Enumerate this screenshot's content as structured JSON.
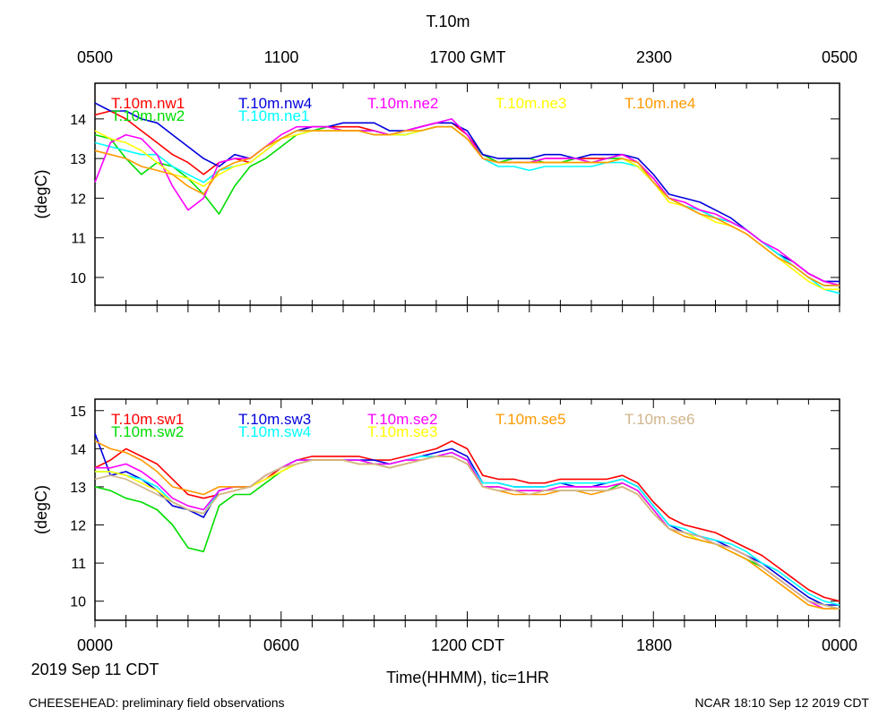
{
  "title": "T.10m",
  "top_axis_ticks": [
    "0500",
    "1100",
    "1700 GMT",
    "2300",
    "0500"
  ],
  "bottom_axis_ticks": [
    "0000",
    "0600",
    "1200 CDT",
    "1800",
    "0000"
  ],
  "date_label": "2019 Sep 11 CDT",
  "xlabel": "Time(HHMM), tic=1HR",
  "footer_left": "CHEESEHEAD: preliminary field observations",
  "footer_right": "NCAR 18:10 Sep 12 2019 CDT",
  "chart_data": [
    {
      "type": "line",
      "panel": "top",
      "ylabel": "(degC)",
      "ylim": [
        9.3,
        14.9
      ],
      "yticks": [
        10,
        11,
        12,
        13,
        14
      ],
      "xlim": [
        0,
        24
      ],
      "x": [
        0,
        0.5,
        1,
        1.5,
        2,
        2.5,
        3,
        3.5,
        4,
        4.5,
        5,
        5.5,
        6,
        6.5,
        7,
        7.5,
        8,
        8.5,
        9,
        9.5,
        10,
        10.5,
        11,
        11.5,
        12,
        12.5,
        13,
        13.5,
        14,
        14.5,
        15,
        15.5,
        16,
        16.5,
        17,
        17.5,
        18,
        18.5,
        19,
        19.5,
        20,
        20.5,
        21,
        21.5,
        22,
        22.5,
        23,
        23.5,
        24
      ],
      "series": [
        {
          "name": "T.10m.nw1",
          "color": "#ff0000",
          "values": [
            14.1,
            14.2,
            14.0,
            13.7,
            13.4,
            13.1,
            12.9,
            12.6,
            12.9,
            13.0,
            12.9,
            13.2,
            13.5,
            13.7,
            13.8,
            13.8,
            13.8,
            13.8,
            13.7,
            13.6,
            13.7,
            13.8,
            13.9,
            13.9,
            13.6,
            13.1,
            12.9,
            12.9,
            12.9,
            13.0,
            13.0,
            13.0,
            13.0,
            13.0,
            13.1,
            12.9,
            12.5,
            12.0,
            11.8,
            11.7,
            11.5,
            11.4,
            11.2,
            10.9,
            10.6,
            10.4,
            10.1,
            9.9,
            9.8
          ]
        },
        {
          "name": "T.10m.nw2",
          "color": "#00dd00",
          "values": [
            13.6,
            13.5,
            13.0,
            12.6,
            12.9,
            12.8,
            12.5,
            12.1,
            11.6,
            12.3,
            12.8,
            13.0,
            13.3,
            13.6,
            13.7,
            13.8,
            13.7,
            13.7,
            13.7,
            13.6,
            13.6,
            13.7,
            13.8,
            13.8,
            13.5,
            13.1,
            12.9,
            13.0,
            13.0,
            12.9,
            12.9,
            13.0,
            12.9,
            13.0,
            13.0,
            12.8,
            12.4,
            12.0,
            11.8,
            11.7,
            11.5,
            11.4,
            11.2,
            10.9,
            10.6,
            10.3,
            10.0,
            9.8,
            9.8
          ]
        },
        {
          "name": "T.10m.nw4",
          "color": "#0000dd",
          "values": [
            14.4,
            14.2,
            14.2,
            14.0,
            13.9,
            13.6,
            13.3,
            13.0,
            12.8,
            13.1,
            13.0,
            13.3,
            13.5,
            13.7,
            13.8,
            13.8,
            13.9,
            13.9,
            13.9,
            13.7,
            13.7,
            13.8,
            13.9,
            13.9,
            13.7,
            13.1,
            13.0,
            13.0,
            13.0,
            13.1,
            13.1,
            13.0,
            13.1,
            13.1,
            13.1,
            13.0,
            12.6,
            12.1,
            12.0,
            11.9,
            11.7,
            11.5,
            11.2,
            10.9,
            10.6,
            10.4,
            10.1,
            9.9,
            9.9
          ]
        },
        {
          "name": "T.10m.ne1",
          "color": "#00ffff",
          "values": [
            13.4,
            13.3,
            13.2,
            13.1,
            13.1,
            12.8,
            12.6,
            12.4,
            12.7,
            12.8,
            12.9,
            13.2,
            13.5,
            13.7,
            13.7,
            13.7,
            13.7,
            13.7,
            13.6,
            13.6,
            13.6,
            13.7,
            13.8,
            13.8,
            13.5,
            13.0,
            12.8,
            12.8,
            12.7,
            12.8,
            12.8,
            12.8,
            12.8,
            12.9,
            12.9,
            12.8,
            12.4,
            12.0,
            11.8,
            11.7,
            11.5,
            11.4,
            11.2,
            10.9,
            10.6,
            10.3,
            10.0,
            9.7,
            9.6
          ]
        },
        {
          "name": "T.10m.ne2",
          "color": "#ff00ff",
          "values": [
            12.4,
            13.4,
            13.6,
            13.5,
            13.1,
            12.3,
            11.7,
            12.0,
            12.9,
            13.0,
            13.0,
            13.3,
            13.6,
            13.8,
            13.8,
            13.8,
            13.7,
            13.7,
            13.7,
            13.6,
            13.7,
            13.8,
            13.9,
            14.0,
            13.6,
            13.0,
            12.9,
            12.9,
            12.9,
            13.0,
            13.0,
            13.0,
            12.9,
            13.0,
            13.1,
            12.9,
            12.5,
            12.0,
            11.9,
            11.7,
            11.6,
            11.4,
            11.2,
            10.9,
            10.7,
            10.4,
            10.1,
            9.9,
            9.8
          ]
        },
        {
          "name": "T.10m.ne3",
          "color": "#ffff00",
          "values": [
            13.7,
            13.5,
            13.4,
            13.2,
            12.9,
            12.6,
            12.5,
            12.3,
            12.6,
            12.8,
            12.9,
            13.2,
            13.5,
            13.6,
            13.7,
            13.7,
            13.7,
            13.7,
            13.6,
            13.6,
            13.6,
            13.7,
            13.8,
            13.8,
            13.5,
            13.0,
            12.9,
            12.9,
            12.9,
            12.9,
            12.9,
            12.9,
            12.9,
            12.9,
            13.0,
            12.8,
            12.4,
            11.9,
            11.8,
            11.6,
            11.4,
            11.3,
            11.1,
            10.8,
            10.5,
            10.2,
            9.9,
            9.7,
            9.7
          ]
        },
        {
          "name": "T.10m.ne4",
          "color": "#ff9900",
          "values": [
            13.2,
            13.1,
            13.0,
            12.8,
            12.7,
            12.6,
            12.3,
            12.1,
            12.7,
            12.9,
            13.0,
            13.3,
            13.5,
            13.7,
            13.7,
            13.7,
            13.7,
            13.7,
            13.6,
            13.6,
            13.7,
            13.7,
            13.8,
            13.8,
            13.5,
            13.0,
            12.9,
            12.9,
            12.9,
            12.9,
            12.9,
            12.9,
            12.9,
            12.9,
            13.0,
            12.9,
            12.4,
            12.0,
            11.8,
            11.6,
            11.5,
            11.3,
            11.1,
            10.8,
            10.5,
            10.3,
            10.0,
            9.8,
            9.8
          ]
        }
      ]
    },
    {
      "type": "line",
      "panel": "bottom",
      "ylabel": "(degC)",
      "ylim": [
        9.5,
        15.3
      ],
      "yticks": [
        10,
        11,
        12,
        13,
        14,
        15
      ],
      "xlim": [
        0,
        24
      ],
      "x": [
        0,
        0.5,
        1,
        1.5,
        2,
        2.5,
        3,
        3.5,
        4,
        4.5,
        5,
        5.5,
        6,
        6.5,
        7,
        7.5,
        8,
        8.5,
        9,
        9.5,
        10,
        10.5,
        11,
        11.5,
        12,
        12.5,
        13,
        13.5,
        14,
        14.5,
        15,
        15.5,
        16,
        16.5,
        17,
        17.5,
        18,
        18.5,
        19,
        19.5,
        20,
        20.5,
        21,
        21.5,
        22,
        22.5,
        23,
        23.5,
        24
      ],
      "series": [
        {
          "name": "T.10m.sw1",
          "color": "#ff0000",
          "values": [
            13.5,
            13.7,
            14.0,
            13.8,
            13.6,
            13.2,
            12.8,
            12.7,
            12.8,
            12.9,
            13.0,
            13.2,
            13.5,
            13.7,
            13.8,
            13.8,
            13.8,
            13.8,
            13.7,
            13.7,
            13.8,
            13.9,
            14.0,
            14.2,
            14.0,
            13.3,
            13.2,
            13.2,
            13.1,
            13.1,
            13.2,
            13.2,
            13.2,
            13.2,
            13.3,
            13.1,
            12.6,
            12.2,
            12.0,
            11.9,
            11.8,
            11.6,
            11.4,
            11.2,
            10.9,
            10.6,
            10.3,
            10.1,
            10.0
          ]
        },
        {
          "name": "T.10m.sw2",
          "color": "#00dd00",
          "values": [
            13.0,
            12.9,
            12.7,
            12.6,
            12.4,
            12.0,
            11.4,
            11.3,
            12.5,
            12.8,
            12.8,
            13.1,
            13.4,
            13.6,
            13.7,
            13.7,
            13.7,
            13.6,
            13.6,
            13.5,
            13.6,
            13.7,
            13.8,
            13.9,
            13.7,
            13.0,
            13.0,
            12.9,
            12.9,
            12.9,
            12.9,
            12.9,
            12.9,
            12.9,
            13.1,
            12.9,
            12.4,
            11.9,
            11.8,
            11.6,
            11.5,
            11.3,
            11.1,
            10.9,
            10.6,
            10.3,
            10.0,
            9.9,
            9.8
          ]
        },
        {
          "name": "T.10m.sw3",
          "color": "#0000dd",
          "values": [
            14.4,
            13.3,
            13.4,
            13.2,
            12.9,
            12.5,
            12.4,
            12.2,
            12.9,
            13.0,
            13.0,
            13.3,
            13.5,
            13.7,
            13.7,
            13.7,
            13.7,
            13.7,
            13.7,
            13.6,
            13.7,
            13.8,
            13.9,
            14.0,
            13.8,
            13.1,
            13.1,
            13.0,
            13.0,
            13.0,
            13.1,
            13.0,
            13.0,
            13.1,
            13.2,
            13.0,
            12.5,
            12.0,
            11.8,
            11.7,
            11.6,
            11.4,
            11.2,
            11.0,
            10.7,
            10.4,
            10.1,
            9.9,
            9.9
          ]
        },
        {
          "name": "T.10m.sw4",
          "color": "#00ffff",
          "values": [
            13.4,
            13.4,
            13.3,
            13.2,
            13.0,
            12.6,
            12.4,
            12.3,
            12.9,
            13.0,
            13.0,
            13.3,
            13.5,
            13.7,
            13.7,
            13.7,
            13.7,
            13.7,
            13.6,
            13.6,
            13.7,
            13.8,
            13.8,
            13.9,
            13.7,
            13.1,
            13.1,
            13.0,
            13.0,
            13.0,
            13.1,
            13.1,
            13.1,
            13.1,
            13.2,
            13.0,
            12.5,
            12.0,
            11.9,
            11.7,
            11.6,
            11.5,
            11.3,
            11.0,
            10.8,
            10.5,
            10.2,
            10.0,
            9.9
          ]
        },
        {
          "name": "T.10m.se2",
          "color": "#ff00ff",
          "values": [
            13.5,
            13.5,
            13.6,
            13.4,
            13.1,
            12.7,
            12.5,
            12.4,
            12.9,
            13.0,
            13.0,
            13.3,
            13.5,
            13.7,
            13.7,
            13.7,
            13.7,
            13.7,
            13.6,
            13.6,
            13.7,
            13.7,
            13.8,
            13.9,
            13.7,
            13.0,
            13.0,
            12.9,
            12.9,
            12.9,
            13.0,
            13.0,
            13.0,
            13.0,
            13.1,
            12.9,
            12.4,
            11.9,
            11.8,
            11.7,
            11.5,
            11.4,
            11.2,
            10.9,
            10.6,
            10.3,
            10.0,
            9.8,
            9.8
          ]
        },
        {
          "name": "T.10m.se3",
          "color": "#ffff00",
          "values": [
            13.4,
            13.4,
            13.3,
            13.1,
            12.9,
            12.6,
            12.4,
            12.3,
            12.8,
            12.9,
            13.0,
            13.2,
            13.4,
            13.6,
            13.7,
            13.7,
            13.7,
            13.6,
            13.6,
            13.5,
            13.6,
            13.7,
            13.8,
            13.8,
            13.6,
            13.0,
            12.9,
            12.9,
            12.8,
            12.9,
            12.9,
            12.9,
            12.9,
            12.9,
            13.0,
            12.8,
            12.3,
            11.9,
            11.8,
            11.6,
            11.5,
            11.3,
            11.1,
            10.8,
            10.5,
            10.2,
            9.9,
            9.8,
            9.8
          ]
        },
        {
          "name": "T.10m.se5",
          "color": "#ff9900",
          "values": [
            14.2,
            14.0,
            13.9,
            13.7,
            13.4,
            13.0,
            12.9,
            12.8,
            13.0,
            13.0,
            13.0,
            13.3,
            13.5,
            13.6,
            13.7,
            13.7,
            13.7,
            13.6,
            13.6,
            13.5,
            13.6,
            13.7,
            13.8,
            13.8,
            13.6,
            13.0,
            12.9,
            12.8,
            12.8,
            12.8,
            12.9,
            12.9,
            12.8,
            12.9,
            13.0,
            12.8,
            12.3,
            11.9,
            11.7,
            11.6,
            11.5,
            11.3,
            11.1,
            10.8,
            10.5,
            10.2,
            9.9,
            9.8,
            9.8
          ]
        },
        {
          "name": "T.10m.se6",
          "color": "#d2b48c",
          "values": [
            13.2,
            13.3,
            13.2,
            13.0,
            12.8,
            12.6,
            12.4,
            12.3,
            12.8,
            12.9,
            13.0,
            13.3,
            13.5,
            13.6,
            13.7,
            13.7,
            13.7,
            13.6,
            13.6,
            13.5,
            13.6,
            13.7,
            13.8,
            13.8,
            13.6,
            13.0,
            12.9,
            12.9,
            12.8,
            12.9,
            12.9,
            12.9,
            12.9,
            12.9,
            13.0,
            12.8,
            12.3,
            11.9,
            11.8,
            11.7,
            11.5,
            11.4,
            11.2,
            10.9,
            10.6,
            10.3,
            10.0,
            9.9,
            9.8
          ]
        }
      ]
    }
  ]
}
